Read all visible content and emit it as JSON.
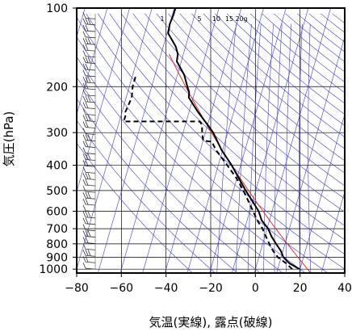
{
  "chart_data": {
    "type": "line",
    "subtype": "skew-T log-P diagram",
    "title": "",
    "xlabel": "気温(実線), 露点(破線)",
    "ylabel": "気圧(hPa)",
    "x_ticks": [
      "−80",
      "−60",
      "−40",
      "−20",
      "0",
      "20",
      "40"
    ],
    "x_tick_values": [
      -80,
      -60,
      -40,
      -20,
      0,
      20,
      40
    ],
    "xlim": [
      -80,
      40
    ],
    "y_scale": "log",
    "y_ticks": [
      "100",
      "200",
      "300",
      "400",
      "500",
      "600",
      "700",
      "800",
      "900",
      "1000"
    ],
    "y_tick_values": [
      100,
      200,
      300,
      400,
      500,
      600,
      700,
      800,
      900,
      1000
    ],
    "ylim": [
      1035,
      100
    ],
    "grid": true,
    "mixing_ratio_labels": [
      "1",
      "5",
      "10",
      "15",
      "20g"
    ],
    "series": [
      {
        "role": "temperature",
        "style": "solid",
        "color": "#000000",
        "points": [
          {
            "p": 1000,
            "t": 19.8
          },
          {
            "p": 950,
            "t": 14.5
          },
          {
            "p": 900,
            "t": 11.0
          },
          {
            "p": 850,
            "t": 9.0
          },
          {
            "p": 800,
            "t": 6.0
          },
          {
            "p": 750,
            "t": 3.0
          },
          {
            "p": 700,
            "t": 0.5
          },
          {
            "p": 650,
            "t": -3.5
          },
          {
            "p": 600,
            "t": -6.0
          },
          {
            "p": 550,
            "t": -10.0
          },
          {
            "p": 500,
            "t": -14.5
          },
          {
            "p": 450,
            "t": -19.0
          },
          {
            "p": 400,
            "t": -24.0
          },
          {
            "p": 350,
            "t": -30.5
          },
          {
            "p": 300,
            "t": -36.5
          },
          {
            "p": 280,
            "t": -40.0
          },
          {
            "p": 250,
            "t": -46.0
          },
          {
            "p": 220,
            "t": -52.0
          },
          {
            "p": 210,
            "t": -52.5
          },
          {
            "p": 200,
            "t": -54.0
          },
          {
            "p": 180,
            "t": -57.0
          },
          {
            "p": 160,
            "t": -62.0
          },
          {
            "p": 150,
            "t": -62.5
          },
          {
            "p": 140,
            "t": -64.5
          },
          {
            "p": 125,
            "t": -69.5
          },
          {
            "p": 115,
            "t": -70.0
          },
          {
            "p": 106,
            "t": -69.5
          },
          {
            "p": 100,
            "t": -69.5
          }
        ]
      },
      {
        "role": "dew point",
        "style": "dashed",
        "color": "#000000",
        "points": [
          {
            "p": 1000,
            "t": 16.5
          },
          {
            "p": 950,
            "t": 13.0
          },
          {
            "p": 900,
            "t": 8.5
          },
          {
            "p": 850,
            "t": 5.5
          },
          {
            "p": 800,
            "t": 3.0
          },
          {
            "p": 750,
            "t": 0.5
          },
          {
            "p": 700,
            "t": -2.0
          },
          {
            "p": 650,
            "t": -5.5
          },
          {
            "p": 600,
            "t": -8.5
          },
          {
            "p": 500,
            "t": -15.5
          },
          {
            "p": 450,
            "t": -20.0
          },
          {
            "p": 400,
            "t": -26.0
          },
          {
            "p": 350,
            "t": -33.0
          },
          {
            "p": 325,
            "t": -36.0
          },
          {
            "p": 322,
            "t": -40.0
          },
          {
            "p": 300,
            "t": -41.5
          },
          {
            "p": 280,
            "t": -42.5
          },
          {
            "p": 272,
            "t": -44.0
          },
          {
            "p": 272,
            "t": -78.0
          },
          {
            "p": 255,
            "t": -78.0
          },
          {
            "p": 250,
            "t": -78.5
          },
          {
            "p": 220,
            "t": -77.5
          },
          {
            "p": 200,
            "t": -78.5
          },
          {
            "p": 180,
            "t": -78.5
          }
        ]
      }
    ],
    "reference_lines": {
      "isotherm_color": "#3a3ad8",
      "dry_adiabat_color": "#3a3ad8",
      "mixing_ratio_color": "#3a3ad8",
      "reference_profile_color": "#e03020"
    },
    "wind_barbs": "present at left edge (about 40 levels)"
  }
}
